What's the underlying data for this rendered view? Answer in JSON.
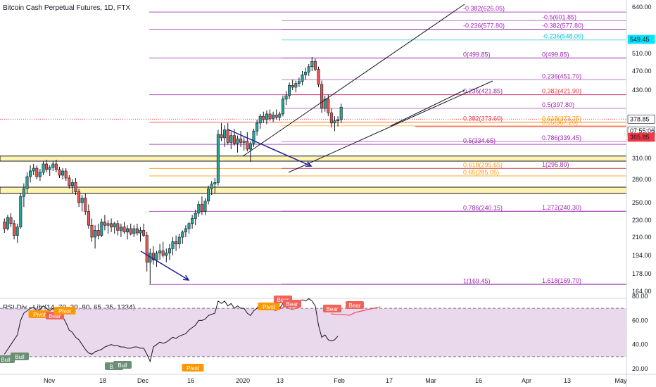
{
  "title": "Bitcoin Cash Perpetual Futures, 1D, FTX",
  "rsi_title": "RSI Div - Lib (14, 70, 30, 80, 65, 35, 1234)",
  "colors": {
    "bull": "#26a69a",
    "bear": "#ef5350",
    "purple": "#9c27b0",
    "orange": "#ff9800",
    "red": "#f23645",
    "blue": "#1e1e9b",
    "cyan": "#00bcd4",
    "band": "#e1c8e6",
    "zone": "#fff3b0",
    "zone_border": "#131722"
  },
  "price_axis": {
    "ticks": [
      {
        "v": 640,
        "label": "640.00"
      },
      {
        "v": 510,
        "label": "510.00"
      },
      {
        "v": 470,
        "label": "470.00"
      },
      {
        "v": 430,
        "label": "430.00"
      },
      {
        "v": 310,
        "label": "310.00"
      },
      {
        "v": 280,
        "label": "280.00"
      },
      {
        "v": 250,
        "label": "250.00"
      },
      {
        "v": 230,
        "label": "230.00"
      },
      {
        "v": 210,
        "label": "210.00"
      },
      {
        "v": 194,
        "label": "194.00"
      },
      {
        "v": 178,
        "label": "178.00"
      },
      {
        "v": 164,
        "label": "164.00"
      }
    ],
    "badges": [
      {
        "v": 549.45,
        "label": "549.45",
        "bg": "#00e5ff",
        "fg": "#131722"
      },
      {
        "v": 378.85,
        "label": "378.85",
        "bg": "#ffffff",
        "fg": "#131722"
      },
      {
        "v": 358,
        "label": "07:55:06",
        "bg": "#ffffff",
        "fg": "#131722"
      },
      {
        "v": 347,
        "label": "365.85",
        "bg": "#f23645",
        "fg": "#ffffff"
      }
    ]
  },
  "rsi_axis": {
    "ticks": [
      {
        "v": 80,
        "label": "80.00"
      },
      {
        "v": 60,
        "label": "60.00"
      },
      {
        "v": 40,
        "label": "40.00"
      },
      {
        "v": 20,
        "label": "20.00"
      }
    ]
  },
  "time_axis": [
    "Nov",
    "18",
    "Dec",
    "16",
    "2020",
    "13",
    "Feb",
    "17",
    "Mar",
    "16",
    "Apr",
    "13",
    "May"
  ],
  "fib_left": [
    {
      "v": 626.05,
      "label": "-0.382(626.05)",
      "color": "#9c27b0"
    },
    {
      "v": 577.8,
      "label": "-0.236(577.80)",
      "color": "#9c27b0"
    },
    {
      "v": 499.85,
      "label": "0(499.85)",
      "color": "#9c27b0"
    },
    {
      "v": 421.85,
      "label": "0.236(421.85)",
      "color": "#9c27b0"
    },
    {
      "v": 373.6,
      "label": "0.382(373.60)",
      "color": "#f23645"
    },
    {
      "v": 334.65,
      "label": "0.5(334.65)",
      "color": "#9c27b0"
    },
    {
      "v": 295.65,
      "label": "0.618(295.65)",
      "color": "#ff9800"
    },
    {
      "v": 285.05,
      "label": "0.65(285.05)",
      "color": "#ff9800"
    },
    {
      "v": 240.15,
      "label": "0.786(240.15)",
      "color": "#9c27b0"
    },
    {
      "v": 169.45,
      "label": "1(169.45)",
      "color": "#9c27b0"
    }
  ],
  "fib_right": [
    {
      "v": 601.85,
      "label": "-0.5(601.85)",
      "color": "#9c27b0"
    },
    {
      "v": 577.8,
      "label": "-0.382(577.80)",
      "color": "#9c27b0"
    },
    {
      "v": 548.0,
      "label": "-0.236(548.00)",
      "color": "#00bcd4"
    },
    {
      "v": 499.85,
      "label": "0(499.85)",
      "color": "#9c27b0"
    },
    {
      "v": 451.7,
      "label": "0.236(451.70)",
      "color": "#9c27b0"
    },
    {
      "v": 421.9,
      "label": "0.382(421.90)",
      "color": "#f23645"
    },
    {
      "v": 397.8,
      "label": "0.5(397.80)",
      "color": "#9c27b0"
    },
    {
      "v": 373.75,
      "label": "0.618(373.75)",
      "color": "#ff9800"
    },
    {
      "v": 367.2,
      "label": "0.65(367.20)",
      "color": "#ff9800"
    },
    {
      "v": 339.45,
      "label": "0.786(339.45)",
      "color": "#9c27b0"
    },
    {
      "v": 295.8,
      "label": "1(295.80)",
      "color": "#9c27b0"
    },
    {
      "v": 240.3,
      "label": "1.272(240.30)",
      "color": "#9c27b0"
    },
    {
      "v": 169.7,
      "label": "1.618(169.70)",
      "color": "#9c27b0"
    }
  ],
  "zones": [
    {
      "top": 314,
      "bottom": 306
    },
    {
      "top": 270,
      "bottom": 262
    }
  ],
  "rsi_tags": [
    {
      "label": "Bull",
      "type": "bull"
    },
    {
      "label": "Bull",
      "type": "bull"
    },
    {
      "label": "Pivot",
      "type": "pivot"
    },
    {
      "label": "Bear",
      "type": "bear"
    },
    {
      "label": "Pivot",
      "type": "pivot"
    },
    {
      "label": "Bull",
      "type": "bull"
    },
    {
      "label": "Bull",
      "type": "bull"
    },
    {
      "label": "Pivot",
      "type": "pivot"
    },
    {
      "label": "Pivot",
      "type": "pivot"
    },
    {
      "label": "Bear",
      "type": "bear"
    },
    {
      "label": "Bear",
      "type": "bear"
    },
    {
      "label": "Bear",
      "type": "bear"
    },
    {
      "label": "Bear",
      "type": "bear"
    }
  ],
  "candles": [
    [
      228,
      232,
      215,
      220
    ],
    [
      220,
      236,
      218,
      233
    ],
    [
      233,
      238,
      222,
      226
    ],
    [
      226,
      230,
      208,
      212
    ],
    [
      212,
      226,
      205,
      222
    ],
    [
      222,
      262,
      220,
      258
    ],
    [
      258,
      275,
      245,
      268
    ],
    [
      268,
      290,
      262,
      284
    ],
    [
      284,
      300,
      276,
      292
    ],
    [
      292,
      302,
      286,
      296
    ],
    [
      296,
      300,
      280,
      284
    ],
    [
      284,
      295,
      278,
      290
    ],
    [
      290,
      306,
      286,
      302
    ],
    [
      302,
      308,
      290,
      294
    ],
    [
      294,
      300,
      285,
      297
    ],
    [
      297,
      306,
      292,
      302
    ],
    [
      302,
      308,
      290,
      294
    ],
    [
      294,
      298,
      282,
      286
    ],
    [
      286,
      296,
      280,
      292
    ],
    [
      292,
      296,
      278,
      282
    ],
    [
      282,
      286,
      268,
      272
    ],
    [
      272,
      280,
      262,
      276
    ],
    [
      276,
      282,
      260,
      264
    ],
    [
      264,
      268,
      245,
      250
    ],
    [
      250,
      260,
      240,
      256
    ],
    [
      256,
      262,
      236,
      240
    ],
    [
      240,
      248,
      220,
      224
    ],
    [
      224,
      232,
      206,
      210
    ],
    [
      210,
      224,
      200,
      218
    ],
    [
      218,
      226,
      208,
      212
    ],
    [
      212,
      232,
      210,
      228
    ],
    [
      228,
      236,
      218,
      224
    ],
    [
      224,
      230,
      214,
      226
    ],
    [
      226,
      232,
      216,
      222
    ],
    [
      222,
      228,
      214,
      226
    ],
    [
      226,
      230,
      212,
      218
    ],
    [
      218,
      226,
      210,
      222
    ],
    [
      222,
      228,
      214,
      216
    ],
    [
      216,
      224,
      208,
      220
    ],
    [
      220,
      226,
      212,
      214
    ],
    [
      214,
      224,
      210,
      220
    ],
    [
      220,
      226,
      212,
      215
    ],
    [
      215,
      222,
      206,
      218
    ],
    [
      218,
      226,
      210,
      212
    ],
    [
      212,
      216,
      180,
      188
    ],
    [
      188,
      200,
      170,
      196
    ],
    [
      196,
      202,
      186,
      190
    ],
    [
      190,
      198,
      184,
      196
    ],
    [
      196,
      204,
      190,
      198
    ],
    [
      198,
      206,
      192,
      194
    ],
    [
      194,
      200,
      188,
      196
    ],
    [
      196,
      204,
      190,
      200
    ],
    [
      200,
      210,
      194,
      206
    ],
    [
      206,
      212,
      198,
      204
    ],
    [
      204,
      214,
      200,
      210
    ],
    [
      210,
      218,
      204,
      216
    ],
    [
      216,
      224,
      210,
      220
    ],
    [
      220,
      228,
      214,
      226
    ],
    [
      226,
      236,
      220,
      232
    ],
    [
      232,
      242,
      224,
      238
    ],
    [
      238,
      252,
      234,
      248
    ],
    [
      248,
      258,
      236,
      240
    ],
    [
      240,
      256,
      236,
      252
    ],
    [
      252,
      272,
      248,
      268
    ],
    [
      268,
      278,
      260,
      274
    ],
    [
      274,
      282,
      262,
      276
    ],
    [
      276,
      360,
      272,
      352
    ],
    [
      352,
      372,
      340,
      346
    ],
    [
      346,
      368,
      330,
      360
    ],
    [
      360,
      372,
      334,
      338
    ],
    [
      338,
      356,
      326,
      350
    ],
    [
      350,
      362,
      332,
      336
    ],
    [
      336,
      350,
      320,
      344
    ],
    [
      344,
      358,
      330,
      338
    ],
    [
      338,
      348,
      324,
      340
    ],
    [
      340,
      356,
      322,
      326
    ],
    [
      326,
      340,
      305,
      336
    ],
    [
      336,
      362,
      330,
      358
    ],
    [
      358,
      378,
      350,
      372
    ],
    [
      372,
      388,
      362,
      384
    ],
    [
      384,
      392,
      372,
      378
    ],
    [
      378,
      394,
      370,
      388
    ],
    [
      388,
      396,
      376,
      380
    ],
    [
      380,
      392,
      374,
      386
    ],
    [
      386,
      396,
      378,
      382
    ],
    [
      382,
      392,
      376,
      388
    ],
    [
      388,
      420,
      384,
      414
    ],
    [
      414,
      428,
      404,
      420
    ],
    [
      420,
      446,
      414,
      440
    ],
    [
      440,
      452,
      430,
      436
    ],
    [
      436,
      450,
      426,
      444
    ],
    [
      444,
      456,
      436,
      448
    ],
    [
      448,
      470,
      440,
      462
    ],
    [
      462,
      478,
      452,
      468
    ],
    [
      468,
      486,
      460,
      480
    ],
    [
      480,
      502,
      470,
      492
    ],
    [
      492,
      498,
      470,
      474
    ],
    [
      474,
      480,
      436,
      442
    ],
    [
      442,
      450,
      390,
      398
    ],
    [
      398,
      420,
      392,
      414
    ],
    [
      414,
      422,
      384,
      390
    ],
    [
      390,
      398,
      364,
      372
    ],
    [
      372,
      384,
      358,
      376
    ],
    [
      376,
      384,
      366,
      378
    ],
    [
      378,
      406,
      372,
      400
    ]
  ],
  "rsi": [
    32,
    36,
    40,
    44,
    48,
    60,
    66,
    68,
    70,
    71,
    68,
    69,
    72,
    70,
    68,
    70,
    66,
    62,
    63,
    58,
    52,
    50,
    46,
    44,
    40,
    36,
    33,
    32,
    34,
    35,
    36,
    38,
    39,
    40,
    39,
    39,
    38,
    38,
    37,
    37,
    38,
    38,
    37,
    37,
    32,
    26,
    38,
    40,
    42,
    41,
    42,
    44,
    46,
    45,
    47,
    48,
    49,
    52,
    54,
    56,
    60,
    60,
    61,
    64,
    65,
    66,
    76,
    74,
    76,
    72,
    74,
    70,
    72,
    70,
    70,
    66,
    64,
    68,
    70,
    74,
    72,
    72,
    73,
    72,
    72,
    70,
    74,
    72,
    72,
    74,
    72,
    76,
    77,
    76,
    78,
    76,
    72,
    56,
    46,
    48,
    44,
    43,
    44,
    47
  ]
}
